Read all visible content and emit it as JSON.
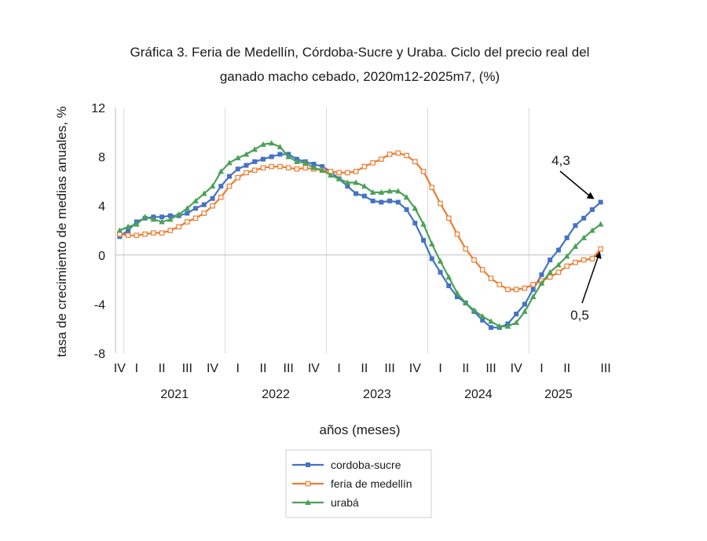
{
  "chart_data": {
    "type": "line",
    "title": "Gráfica 3. Feria de Medellín, Córdoba-Sucre y Uraba. Ciclo del precio real del",
    "subtitle": "ganado macho cebado, 2020m12-2025m7, (%)",
    "xlabel": "años (meses)",
    "ylabel": "tasa de crecimiento de medias anuales, %",
    "ylim": [
      -8,
      12
    ],
    "yticks": [
      "-8",
      "-4",
      "0",
      "4",
      "8",
      "12"
    ],
    "ytick_values": [
      -8,
      -4,
      0,
      4,
      8,
      12
    ],
    "quarter_ticks": [
      "IV",
      "I",
      "II",
      "III",
      "IV",
      "I",
      "II",
      "III",
      "IV",
      "I",
      "II",
      "III",
      "IV",
      "I",
      "II",
      "III",
      "IV",
      "I",
      "II",
      "III"
    ],
    "year_labels": [
      "2021",
      "2022",
      "2023",
      "2024",
      "2025"
    ],
    "x_start": "2020-12",
    "x_end": "2025-07",
    "grid": "vertical lines at year boundaries",
    "legend_position": "bottom",
    "series": [
      {
        "name": "cordoba-sucre",
        "color": "#4472C4",
        "marker": "square-filled",
        "values": [
          1.5,
          2.0,
          2.7,
          3.0,
          3.1,
          3.1,
          3.2,
          3.2,
          3.4,
          3.8,
          4.1,
          4.6,
          5.6,
          6.4,
          7.0,
          7.3,
          7.6,
          7.8,
          8.0,
          8.2,
          8.2,
          7.8,
          7.6,
          7.4,
          7.2,
          6.8,
          6.2,
          5.6,
          5.0,
          4.8,
          4.4,
          4.3,
          4.4,
          4.3,
          3.7,
          2.6,
          1.2,
          -0.3,
          -1.4,
          -2.5,
          -3.4,
          -3.9,
          -4.6,
          -5.3,
          -5.9,
          -5.9,
          -5.6,
          -4.8,
          -4.0,
          -2.8,
          -1.6,
          -0.4,
          0.4,
          1.4,
          2.4,
          3.0,
          3.7,
          4.3
        ]
      },
      {
        "name": "feria de medellín",
        "color": "#ED7D31",
        "marker": "square-open",
        "values": [
          1.7,
          1.6,
          1.6,
          1.7,
          1.8,
          1.8,
          2.0,
          2.3,
          2.7,
          3.0,
          3.4,
          4.0,
          4.7,
          5.6,
          6.3,
          6.7,
          6.9,
          7.1,
          7.2,
          7.2,
          7.1,
          7.0,
          7.1,
          7.0,
          6.9,
          6.8,
          6.7,
          6.7,
          6.8,
          7.2,
          7.5,
          7.8,
          8.2,
          8.3,
          8.1,
          7.6,
          6.8,
          5.5,
          4.2,
          3.0,
          1.7,
          0.5,
          -0.4,
          -1.2,
          -1.9,
          -2.4,
          -2.8,
          -2.8,
          -2.7,
          -2.4,
          -2.1,
          -1.8,
          -1.4,
          -0.9,
          -0.6,
          -0.4,
          -0.3,
          0.5
        ]
      },
      {
        "name": "urabá",
        "color": "#4AA157",
        "marker": "triangle-filled",
        "values": [
          2.0,
          2.3,
          2.5,
          3.1,
          2.9,
          2.7,
          2.9,
          3.3,
          3.8,
          4.4,
          5.0,
          5.6,
          6.8,
          7.5,
          7.9,
          8.2,
          8.6,
          9.0,
          9.1,
          8.8,
          8.0,
          7.6,
          7.5,
          7.1,
          6.9,
          6.5,
          6.2,
          5.9,
          5.9,
          5.6,
          5.1,
          5.1,
          5.2,
          5.2,
          4.7,
          3.8,
          2.5,
          0.9,
          -0.5,
          -1.8,
          -3.1,
          -3.9,
          -4.5,
          -5.0,
          -5.4,
          -5.8,
          -5.8,
          -5.5,
          -4.6,
          -3.4,
          -2.3,
          -1.4,
          -0.8,
          -0.1,
          0.7,
          1.4,
          2.0,
          2.5
        ]
      }
    ],
    "annotations": [
      {
        "text": "4,3",
        "series": "cordoba-sucre",
        "value": 4.3
      },
      {
        "text": "0,5",
        "series": "feria de medellín",
        "value": 0.5
      }
    ]
  }
}
